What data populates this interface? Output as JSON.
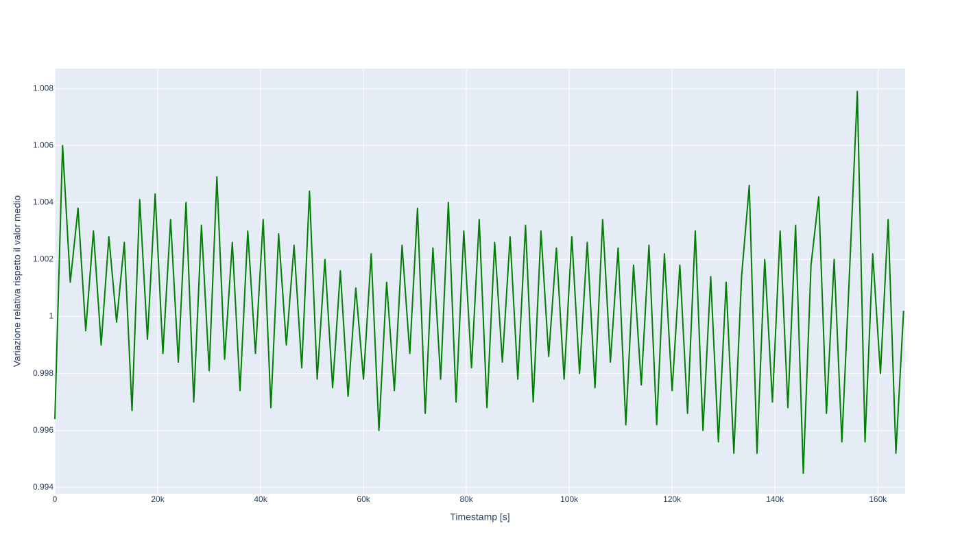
{
  "chart_data": {
    "type": "line",
    "x_label": "Timestamp [s]",
    "y_label": "Variazione relativa rispetto il valor medio",
    "x": [
      0,
      1500,
      3000,
      4500,
      6000,
      7500,
      9000,
      10500,
      12000,
      13500,
      15000,
      16500,
      18000,
      19500,
      21000,
      22500,
      24000,
      25500,
      27000,
      28500,
      30000,
      31500,
      33000,
      34500,
      36000,
      37500,
      39000,
      40500,
      42000,
      43500,
      45000,
      46500,
      48000,
      49500,
      51000,
      52500,
      54000,
      55500,
      57000,
      58500,
      60000,
      61500,
      63000,
      64500,
      66000,
      67500,
      69000,
      70500,
      72000,
      73500,
      75000,
      76500,
      78000,
      79500,
      81000,
      82500,
      84000,
      85500,
      87000,
      88500,
      90000,
      91500,
      93000,
      94500,
      96000,
      97500,
      99000,
      100500,
      102000,
      103500,
      105000,
      106500,
      108000,
      109500,
      111000,
      112500,
      114000,
      115500,
      117000,
      118500,
      120000,
      121500,
      123000,
      124500,
      126000,
      127500,
      129000,
      130500,
      132000,
      133500,
      135000,
      136500,
      138000,
      139500,
      141000,
      142500,
      144000,
      145500,
      147000,
      148500,
      150000,
      151500,
      153000,
      154500,
      156000,
      157500,
      159000,
      160500,
      162000,
      163500,
      165000
    ],
    "series": [
      {
        "name": "Variazione relativa",
        "color": "#008000",
        "values": [
          0.9964,
          1.006,
          1.0012,
          1.0038,
          0.9995,
          1.003,
          0.999,
          1.0028,
          0.9998,
          1.0026,
          0.9967,
          1.0041,
          0.9992,
          1.0043,
          0.9987,
          1.0034,
          0.9984,
          1.004,
          0.997,
          1.0032,
          0.9981,
          1.0049,
          0.9985,
          1.0026,
          0.9974,
          1.003,
          0.9987,
          1.0034,
          0.9968,
          1.0029,
          0.999,
          1.0025,
          0.9982,
          1.0044,
          0.9978,
          1.002,
          0.9975,
          1.0016,
          0.9972,
          1.001,
          0.9978,
          1.0022,
          0.996,
          1.0012,
          0.9974,
          1.0025,
          0.9987,
          1.0038,
          0.9966,
          1.0024,
          0.9978,
          1.004,
          0.997,
          1.003,
          0.9982,
          1.0034,
          0.9968,
          1.0026,
          0.9984,
          1.0028,
          0.9978,
          1.0032,
          0.997,
          1.003,
          0.9986,
          1.0024,
          0.9978,
          1.0028,
          0.998,
          1.0026,
          0.9975,
          1.0034,
          0.9984,
          1.0024,
          0.9962,
          1.0018,
          0.9976,
          1.0025,
          0.9962,
          1.0022,
          0.9974,
          1.0018,
          0.9966,
          1.003,
          0.996,
          1.0014,
          0.9956,
          1.0012,
          0.9952,
          1.0014,
          1.0046,
          0.9952,
          1.002,
          0.997,
          1.003,
          0.9968,
          1.0032,
          0.9945,
          1.0018,
          1.0042,
          0.9966,
          1.002,
          0.9956,
          1.0016,
          1.0079,
          0.9956,
          1.0022,
          0.998,
          1.0034,
          0.9952,
          1.0002
        ]
      }
    ],
    "xlim": [
      0,
      165300
    ],
    "xticks": [
      0,
      {
        "value": 20000,
        "label": "20k"
      },
      {
        "value": 40000,
        "label": "40k"
      },
      {
        "value": 60000,
        "label": "60k"
      },
      {
        "value": 80000,
        "label": "80k"
      },
      {
        "value": 100000,
        "label": "100k"
      },
      {
        "value": 120000,
        "label": "120k"
      },
      {
        "value": 140000,
        "label": "140k"
      },
      {
        "value": 160000,
        "label": "160k"
      }
    ],
    "ylim": [
      0.99378,
      1.0087
    ],
    "yticks": [
      0.994,
      0.996,
      0.998,
      1,
      1.002,
      1.004,
      1.006,
      1.008
    ],
    "grid": true
  }
}
